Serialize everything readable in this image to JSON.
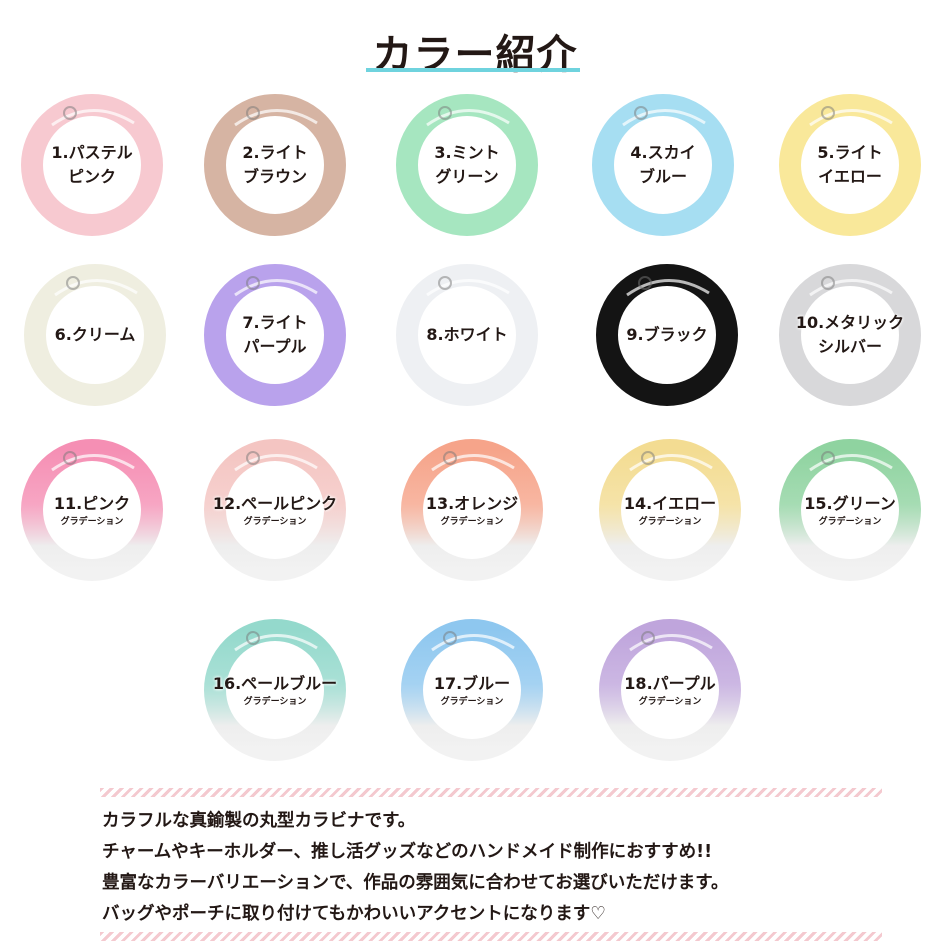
{
  "title": "カラー紹介",
  "colors": {
    "title_underline": "#6fd3de",
    "text": "#231815",
    "stripe": "#f4c9cf"
  },
  "rings": [
    {
      "label": "1.パステル",
      "label2": "ピンク",
      "color": "#f7c9d0",
      "gradient": false
    },
    {
      "label": "2.ライト",
      "label2": "ブラウン",
      "color": "#d6b4a3",
      "gradient": false
    },
    {
      "label": "3.ミント",
      "label2": "グリーン",
      "color": "#a6e6c0",
      "gradient": false
    },
    {
      "label": "4.スカイ",
      "label2": "ブルー",
      "color": "#a6def2",
      "gradient": false
    },
    {
      "label": "5.ライト",
      "label2": "イエロー",
      "color": "#f9e89a",
      "gradient": false
    },
    {
      "label": "6.クリーム",
      "label2": "",
      "color": "#efeee0",
      "gradient": false
    },
    {
      "label": "7.ライト",
      "label2": "パープル",
      "color": "#b9a2ec",
      "gradient": false
    },
    {
      "label": "8.ホワイト",
      "label2": "",
      "color": "#eef0f3",
      "gradient": false
    },
    {
      "label": "9.ブラック",
      "label2": "",
      "color": "#141414",
      "gradient": false
    },
    {
      "label": "10.メタリック",
      "label2": "シルバー",
      "color": "#d8d8da",
      "gradient": false
    },
    {
      "label": "11.ピンク",
      "sub": "グラデーション",
      "color": "#f58fb4",
      "gradient": true
    },
    {
      "label": "12.ペールピンク",
      "sub": "グラデーション",
      "color": "#f4c5c2",
      "gradient": true
    },
    {
      "label": "13.オレンジ",
      "sub": "グラデーション",
      "color": "#f6a48a",
      "gradient": true
    },
    {
      "label": "14.イエロー",
      "sub": "グラデーション",
      "color": "#f3dc92",
      "gradient": true
    },
    {
      "label": "15.グリーン",
      "sub": "グラデーション",
      "color": "#8fd3a0",
      "gradient": true
    },
    {
      "label": "16.ペールブルー",
      "sub": "グラデーション",
      "color": "#94d9cc",
      "gradient": true
    },
    {
      "label": "17.ブルー",
      "sub": "グラデーション",
      "color": "#8ec7ef",
      "gradient": true
    },
    {
      "label": "18.パープル",
      "sub": "グラデーション",
      "color": "#bfa5dc",
      "gradient": true
    }
  ],
  "description": [
    "カラフルな真鍮製の丸型カラビナです。",
    "チャームやキーホルダー、推し活グッズなどのハンドメイド制作におすすめ!!",
    "豊富なカラーバリエーションで、作品の雰囲気に合わせてお選びいただけます。",
    "バッグやポーチに取り付けてもかわいいアクセントになります♡"
  ]
}
